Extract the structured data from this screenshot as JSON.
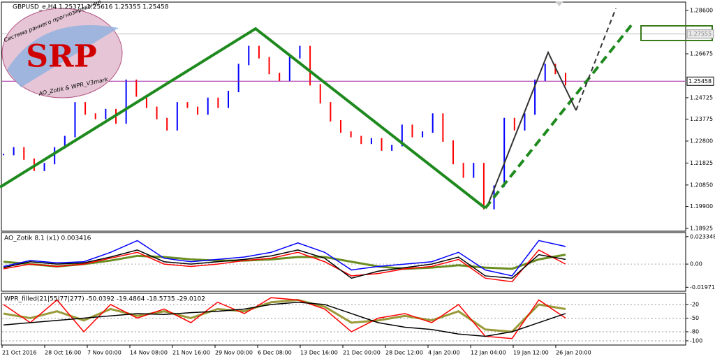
{
  "chart_data": [
    {
      "type": "price-bars",
      "header": "GBPUSD_e,H4  1.25371 1.25616 1.25355 1.25458",
      "logo": {
        "text": "SRP",
        "caption": "Система раннего прогнозирования",
        "footer": "AO_Zotik & WPR_V3mark"
      },
      "values": [
        1.222,
        1.225,
        1.22,
        1.215,
        1.218,
        1.225,
        1.23,
        1.245,
        1.24,
        1.238,
        1.242,
        1.236,
        1.255,
        1.248,
        1.243,
        1.238,
        1.233,
        1.245,
        1.243,
        1.24,
        1.247,
        1.243,
        1.25,
        1.262,
        1.27,
        1.265,
        1.258,
        1.255,
        1.265,
        1.27,
        1.253,
        1.245,
        1.237,
        1.232,
        1.23,
        1.227,
        1.229,
        1.224,
        1.226,
        1.235,
        1.23,
        1.232,
        1.24,
        1.228,
        1.218,
        1.212,
        1.218,
        1.198,
        1.208,
        1.238,
        1.233,
        1.24,
        1.255,
        1.262,
        1.258,
        1.253
      ],
      "up_color": "#0000ff",
      "down_color": "#ff0000",
      "ylim": [
        1.1883,
        1.2894
      ],
      "yticks": [
        {
          "value": 1.286,
          "label": "1.28600"
        },
        {
          "value": 1.26675,
          "label": "1.26675"
        },
        {
          "value": 1.24725,
          "label": "1.24725"
        },
        {
          "value": 1.23775,
          "label": "1.23775"
        },
        {
          "value": 1.228,
          "label": "1.22800"
        },
        {
          "value": 1.21825,
          "label": "1.21825"
        },
        {
          "value": 1.2085,
          "label": "1.20850"
        },
        {
          "value": 1.199,
          "label": "1.19900"
        },
        {
          "value": 1.18925,
          "label": "1.18925"
        }
      ],
      "level": {
        "value": 1.27555,
        "label": "1.27555"
      },
      "current_price": {
        "value": 1.25458,
        "label": "1.25458"
      }
    },
    {
      "type": "indicator",
      "title": "AO_Zotik 8.1 (x1) 0.003416",
      "ylim": [
        -0.0225,
        0.0262
      ],
      "yticks": [
        {
          "value": 0.023348,
          "label": "0.023348"
        },
        {
          "value": 0,
          "label": "0.00"
        },
        {
          "value": -0.019717,
          "label": "-0.019717"
        }
      ],
      "series": [
        {
          "color": "#6b8e23",
          "values": [
            0.002,
            0.0,
            -0.002,
            0.0,
            0.003,
            0.007,
            0.006,
            0.004,
            0.003,
            0.003,
            0.004,
            0.006,
            0.006,
            0.002,
            -0.002,
            -0.004,
            -0.003,
            -0.001,
            -0.003,
            -0.004,
            0.004,
            0.008
          ]
        },
        {
          "color": "#0000ff",
          "values": [
            -0.002,
            0.003,
            0.001,
            0.002,
            0.01,
            0.02,
            0.005,
            0.002,
            0.004,
            0.006,
            0.01,
            0.018,
            0.01,
            -0.005,
            -0.002,
            0.0,
            0.002,
            0.01,
            -0.005,
            -0.01,
            0.02,
            0.015
          ]
        },
        {
          "color": "#ff0000",
          "values": [
            -0.004,
            0.0,
            -0.002,
            0.0,
            0.005,
            0.01,
            0.0,
            -0.002,
            0.0,
            0.003,
            0.005,
            0.01,
            0.002,
            -0.01,
            -0.008,
            -0.004,
            -0.002,
            0.004,
            -0.012,
            -0.015,
            0.012,
            0.0
          ]
        },
        {
          "color": "#000000",
          "values": [
            -0.003,
            0.002,
            0.0,
            0.001,
            0.006,
            0.012,
            0.002,
            0.0,
            0.002,
            0.004,
            0.007,
            0.012,
            0.005,
            -0.012,
            -0.006,
            -0.003,
            0.0,
            0.006,
            -0.01,
            -0.012,
            0.008,
            0.004
          ]
        }
      ]
    },
    {
      "type": "indicator",
      "title": "WPR_filled(21|55|77|277) -50.0392 -19.4864 -18.5735 -29.0102",
      "ylim": [
        -107.7,
        3
      ],
      "yticks": [
        -20,
        -50,
        -80,
        -100
      ],
      "series": [
        {
          "color": "#9a9a3a",
          "values": [
            -40,
            -50,
            -35,
            -55,
            -30,
            -45,
            -35,
            -50,
            -30,
            -35,
            -15,
            -10,
            -25,
            -60,
            -55,
            -45,
            -55,
            -35,
            -75,
            -80,
            -20,
            -30
          ]
        },
        {
          "color": "#ff0000",
          "values": [
            -20,
            -60,
            -10,
            -80,
            -20,
            -50,
            -30,
            -60,
            -15,
            -40,
            -5,
            -10,
            -30,
            -80,
            -50,
            -40,
            -60,
            -20,
            -90,
            -95,
            -10,
            -50
          ]
        },
        {
          "color": "#000000",
          "values": [
            -65,
            -60,
            -55,
            -50,
            -45,
            -40,
            -42,
            -38,
            -35,
            -30,
            -20,
            -15,
            -20,
            -40,
            -60,
            -70,
            -75,
            -85,
            -90,
            -80,
            -60,
            -40
          ]
        }
      ],
      "x_labels": [
        "21 Oct 2016",
        "28 Oct 16:00",
        "7 Nov 00:00",
        "14 Nov 08:00",
        "21 Nov 16:00",
        "29 Nov 00:00",
        "6 Dec 08:00",
        "13 Dec 16:00",
        "21 Dec 00:00",
        "28 Dec 12:00",
        "4 Jan 20:00",
        "12 Jan 04:00",
        "19 Jan 12:00",
        "26 Jan 20:00"
      ]
    }
  ]
}
